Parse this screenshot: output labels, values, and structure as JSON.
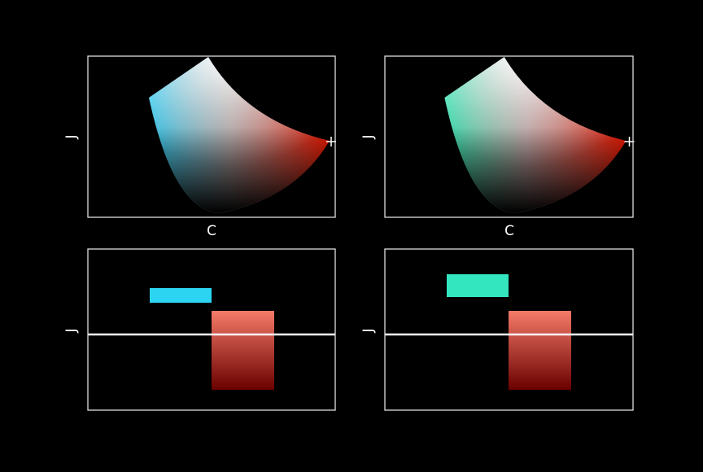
{
  "panels": [
    {
      "xlabel": "C",
      "ylabel": "J"
    },
    {
      "xlabel": "C",
      "ylabel": "J"
    },
    {
      "ylabel": "J"
    },
    {
      "ylabel": "J"
    }
  ]
}
